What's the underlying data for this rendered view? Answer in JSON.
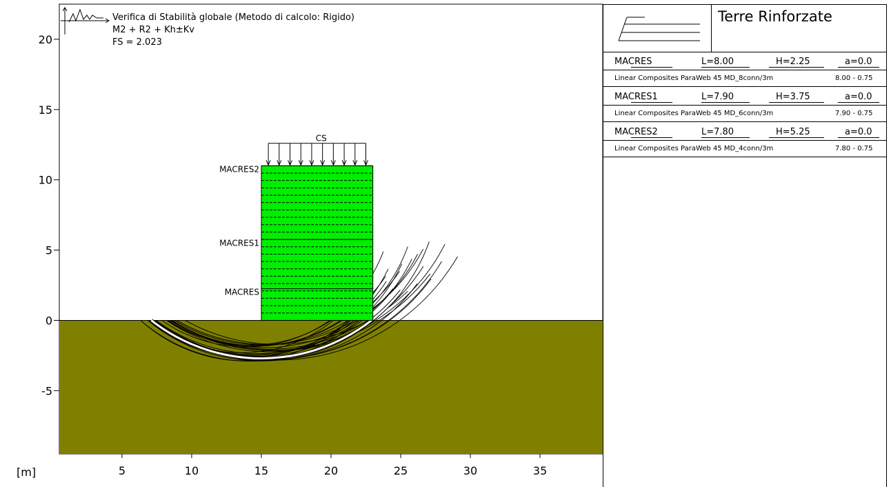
{
  "header": {
    "title": "Verifica di Stabilità globale (Metodo di calcolo: Rigido)",
    "combination": "M2 + R2 + Kh±Kv",
    "fs": "FS = 2.023"
  },
  "axes": {
    "unit_label": "[m]",
    "x_ticks": [
      5,
      10,
      15,
      20,
      25,
      30,
      35
    ],
    "y_ticks": [
      20,
      15,
      10,
      5,
      0,
      -5
    ],
    "x_range": [
      0.5,
      39.5
    ],
    "y_range": [
      -9.5,
      22.5
    ]
  },
  "drawing": {
    "ground_color": "#808000",
    "wall_color": "#00ee00",
    "ground_level": 0.0,
    "wall_x": [
      15.0,
      23.0
    ],
    "wall_top": 11.0,
    "load_label": "CS",
    "load_top": 12.6,
    "load_x": [
      15.5,
      22.5
    ],
    "load_arrow_count": 10,
    "layer_labels": [
      {
        "name": "MACRES2",
        "elev": 11.0
      },
      {
        "name": "MACRES1",
        "elev": 5.75
      },
      {
        "name": "MACRES",
        "elev": 2.25
      }
    ],
    "solid_layer_elevs": [
      2.25,
      5.75,
      11.0
    ],
    "critical_circle": {
      "xc": 15.0,
      "yc": 10.2,
      "r": 12.9
    }
  },
  "panel": {
    "brand": "Terre Rinforzate",
    "rows": [
      {
        "name": "MACRES",
        "L": "L=8.00",
        "H": "H=2.25",
        "a": "a=0.0",
        "material": "Linear Composites ParaWeb 45 MD_8conn/3m",
        "range": "8.00 - 0.75"
      },
      {
        "name": "MACRES1",
        "L": "L=7.90",
        "H": "H=3.75",
        "a": "a=0.0",
        "material": "Linear Composites ParaWeb 45 MD_6conn/3m",
        "range": "7.90 - 0.75"
      },
      {
        "name": "MACRES2",
        "L": "L=7.80",
        "H": "H=5.25",
        "a": "a=0.0",
        "material": "Linear Composites ParaWeb 45 MD_4conn/3m",
        "range": "7.80 - 0.75"
      }
    ]
  }
}
